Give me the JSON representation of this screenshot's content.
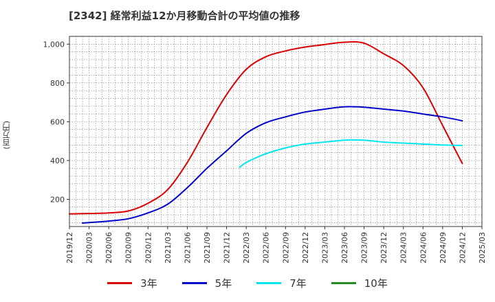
{
  "title": "[2342]  経常利益12か月移動合計の平均値の推移",
  "chart_data": {
    "type": "line",
    "title": "[2342]  経常利益12か月移動合計の平均値の推移",
    "xlabel": "",
    "ylabel": "(百万円)",
    "ylim": [
      60,
      1040
    ],
    "yticks": [
      200,
      400,
      600,
      800,
      1000
    ],
    "ytick_labels": [
      "200",
      "400",
      "600",
      "800",
      "1,000"
    ],
    "x_range": [
      "2019-12",
      "2025-03"
    ],
    "xticks": [
      "2019/12",
      "2020/03",
      "2020/06",
      "2020/09",
      "2020/12",
      "2021/03",
      "2021/06",
      "2021/09",
      "2021/12",
      "2022/03",
      "2022/06",
      "2022/09",
      "2022/12",
      "2023/03",
      "2023/06",
      "2023/09",
      "2023/12",
      "2024/03",
      "2024/06",
      "2024/09",
      "2024/12",
      "2025/03"
    ],
    "grid": true,
    "legend_position": "bottom",
    "series": [
      {
        "name": "3年",
        "color": "#dd0000",
        "x": [
          "2019-12",
          "2020-03",
          "2020-06",
          "2020-09",
          "2020-12",
          "2021-03",
          "2021-06",
          "2021-09",
          "2021-12",
          "2022-03",
          "2022-06",
          "2022-09",
          "2022-12",
          "2023-03",
          "2023-06",
          "2023-09",
          "2023-12",
          "2024-03",
          "2024-06",
          "2024-09",
          "2024-12"
        ],
        "values": [
          125,
          127,
          130,
          140,
          180,
          250,
          390,
          570,
          740,
          870,
          935,
          965,
          985,
          998,
          1010,
          1005,
          950,
          890,
          775,
          580,
          385
        ]
      },
      {
        "name": "5年",
        "color": "#0000cc",
        "x": [
          "2020-02",
          "2020-03",
          "2020-06",
          "2020-09",
          "2020-12",
          "2021-03",
          "2021-06",
          "2021-09",
          "2021-12",
          "2022-03",
          "2022-06",
          "2022-09",
          "2022-12",
          "2023-03",
          "2023-06",
          "2023-09",
          "2023-12",
          "2024-03",
          "2024-06",
          "2024-09",
          "2024-12"
        ],
        "values": [
          78,
          80,
          88,
          100,
          130,
          175,
          260,
          360,
          450,
          540,
          595,
          625,
          650,
          665,
          677,
          675,
          665,
          655,
          640,
          625,
          605
        ]
      },
      {
        "name": "7年",
        "color": "#00e5ee",
        "x": [
          "2022-02",
          "2022-03",
          "2022-06",
          "2022-09",
          "2022-12",
          "2023-03",
          "2023-06",
          "2023-09",
          "2023-12",
          "2024-03",
          "2024-06",
          "2024-09",
          "2024-12"
        ],
        "values": [
          365,
          390,
          435,
          465,
          485,
          495,
          505,
          505,
          495,
          490,
          485,
          480,
          478
        ]
      },
      {
        "name": "10年",
        "color": "#228B22",
        "x": [],
        "values": []
      }
    ]
  }
}
